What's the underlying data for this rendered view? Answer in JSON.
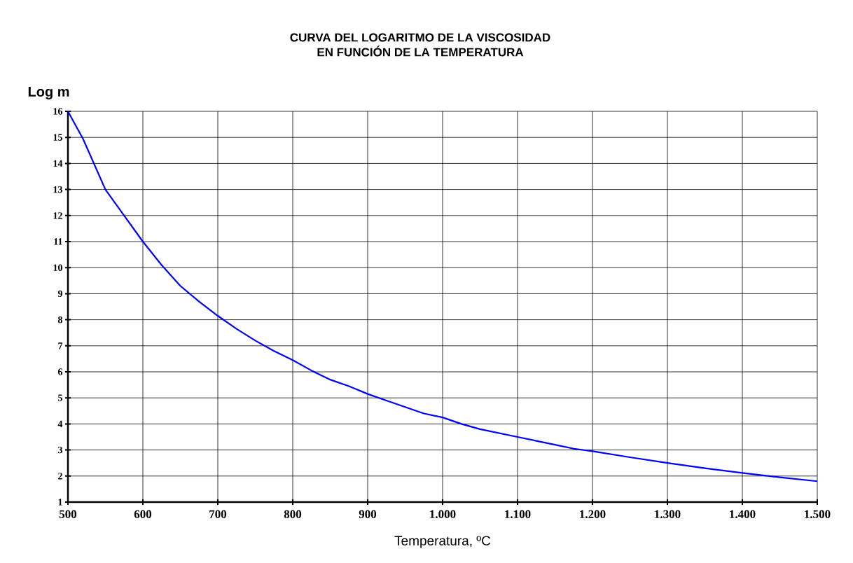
{
  "chart_data": {
    "type": "line",
    "title": "CURVA DEL LOGARITMO DE LA VISCOSIDAD\nEN FUNCIÓN DE LA TEMPERATURA",
    "xlabel": "Temperatura, ºC",
    "ylabel": "Log m",
    "x": [
      500,
      520,
      550,
      575,
      600,
      625,
      650,
      675,
      700,
      725,
      750,
      775,
      800,
      825,
      850,
      875,
      900,
      925,
      950,
      975,
      1000,
      1025,
      1050,
      1075,
      1100,
      1125,
      1150,
      1175,
      1200,
      1250,
      1300,
      1350,
      1400,
      1450,
      1500
    ],
    "series": [
      {
        "color": "#0000ff",
        "values": [
          16,
          14.95,
          13,
          12,
          11,
          10.1,
          9.3,
          8.7,
          8.15,
          7.65,
          7.2,
          6.8,
          6.45,
          6.05,
          5.7,
          5.45,
          5.15,
          4.9,
          4.65,
          4.4,
          4.25,
          4.0,
          3.8,
          3.65,
          3.5,
          3.35,
          3.2,
          3.05,
          2.95,
          2.72,
          2.5,
          2.3,
          2.12,
          1.95,
          1.8
        ]
      }
    ],
    "xlim": [
      500,
      1500
    ],
    "ylim": [
      1,
      16
    ],
    "xticks": [
      500,
      600,
      700,
      800,
      900,
      {
        "value": 1000,
        "label": "1.000"
      },
      {
        "value": 1100,
        "label": "1.100"
      },
      {
        "value": 1200,
        "label": "1.200"
      },
      {
        "value": 1300,
        "label": "1.300"
      },
      {
        "value": 1400,
        "label": "1.400"
      },
      {
        "value": 1500,
        "label": "1.500"
      }
    ],
    "yticks": [
      1,
      2,
      3,
      4,
      5,
      6,
      7,
      8,
      9,
      10,
      11,
      12,
      13,
      14,
      15,
      16
    ],
    "grid": true,
    "marker": "none",
    "line_style": "solid"
  }
}
